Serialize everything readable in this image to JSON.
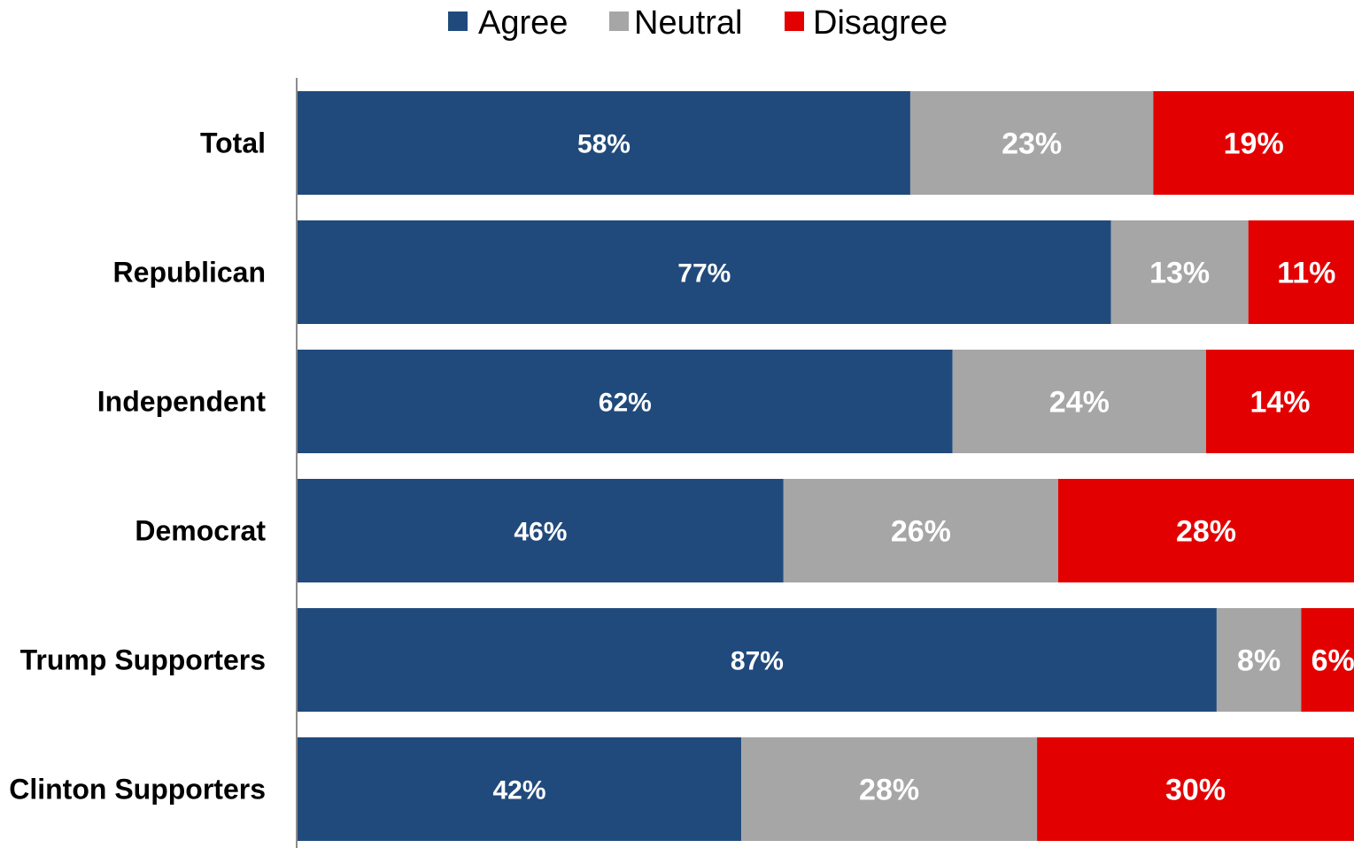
{
  "chart_data": {
    "type": "bar",
    "orientation": "horizontal",
    "stacked": true,
    "percent_stacked": true,
    "legend_position": "top-center",
    "grid": false,
    "xlim": [
      0,
      100
    ],
    "categories": [
      "Total",
      "Republican",
      "Independent",
      "Democrat",
      "Trump Supporters",
      "Clinton Supporters"
    ],
    "series": [
      {
        "name": "Agree",
        "color": "#214a7c",
        "values": [
          58,
          77,
          62,
          46,
          87,
          42
        ],
        "labels": [
          "58%",
          "77%",
          "62%",
          "46%",
          "87%",
          "42%"
        ]
      },
      {
        "name": "Neutral",
        "color": "#a6a6a6",
        "values": [
          23,
          13,
          24,
          26,
          8,
          28
        ],
        "labels": [
          "23%",
          "13%",
          "24%",
          "26%",
          "8%",
          "28%"
        ]
      },
      {
        "name": "Disagree",
        "color": "#e30000",
        "values": [
          19,
          11,
          14,
          28,
          6,
          30
        ],
        "labels": [
          "19%",
          "11%",
          "14%",
          "28%",
          "6%",
          "30%"
        ]
      }
    ]
  }
}
